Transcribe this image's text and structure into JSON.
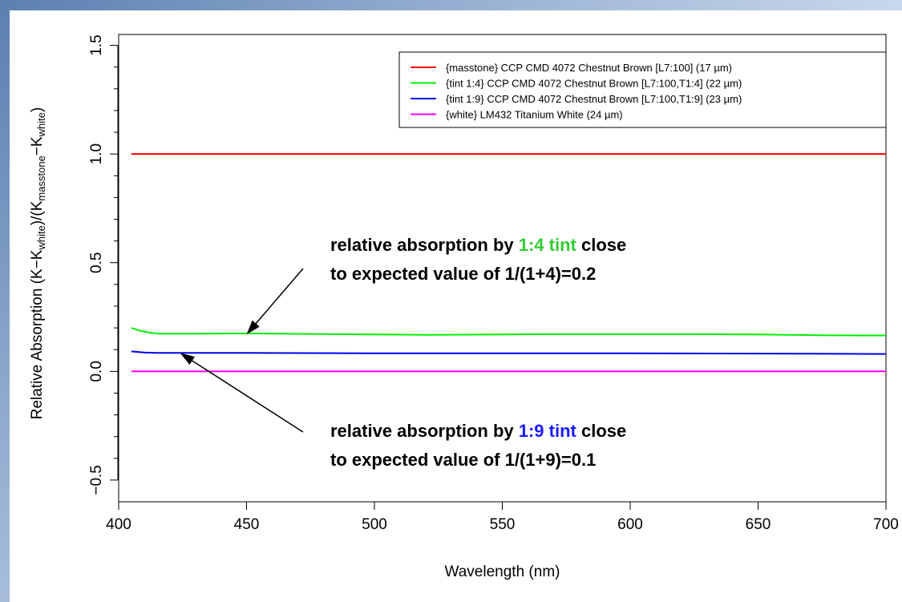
{
  "chart_data": {
    "type": "line",
    "xlabel": "Wavelength (nm)",
    "ylabel": {
      "parts": [
        {
          "t": "Relative Absorption (K−K",
          "sub": false
        },
        {
          "t": "white",
          "sub": true
        },
        {
          "t": ")/(K",
          "sub": false
        },
        {
          "t": "masstone",
          "sub": true
        },
        {
          "t": "−K",
          "sub": false
        },
        {
          "t": "white",
          "sub": true
        },
        {
          "t": ")",
          "sub": false
        }
      ]
    },
    "xlim": [
      400,
      700
    ],
    "ylim": [
      -0.6,
      1.55
    ],
    "x_ticks": [
      400,
      450,
      500,
      550,
      600,
      650,
      700
    ],
    "y_ticks": [
      -0.5,
      0.0,
      0.5,
      1.0,
      1.5
    ],
    "x_tick_labels": [
      "400",
      "450",
      "500",
      "550",
      "600",
      "650",
      "700"
    ],
    "y_tick_labels": [
      "−0.5",
      "0.0",
      "0.5",
      "1.0",
      "1.5"
    ],
    "legend_position": "top-right",
    "grid": false,
    "series": [
      {
        "name": "{masstone} CCP CMD 4072 Chestnut Brown [L7:100] (17 µm)",
        "color": "#ff0000",
        "x": [
          405,
          450,
          500,
          550,
          600,
          650,
          700
        ],
        "y": [
          1.0,
          1.0,
          1.0,
          1.0,
          1.0,
          1.0,
          1.0
        ]
      },
      {
        "name": "{tint 1:4} CCP CMD 4072 Chestnut Brown [L7:100,T1:4] (22 µm)",
        "color": "#00ee00",
        "x": [
          405,
          408,
          412,
          416,
          430,
          450,
          475,
          500,
          520,
          550,
          575,
          600,
          625,
          650,
          675,
          690,
          700
        ],
        "y": [
          0.2,
          0.188,
          0.178,
          0.173,
          0.173,
          0.175,
          0.172,
          0.17,
          0.168,
          0.17,
          0.171,
          0.171,
          0.171,
          0.17,
          0.166,
          0.165,
          0.165
        ]
      },
      {
        "name": "{tint 1:9} CCP CMD 4072 Chestnut Brown [L7:100,T1:9] (23 µm)",
        "color": "#0000ee",
        "x": [
          405,
          410,
          415,
          450,
          500,
          550,
          600,
          650,
          700
        ],
        "y": [
          0.092,
          0.087,
          0.085,
          0.085,
          0.083,
          0.083,
          0.083,
          0.082,
          0.08
        ]
      },
      {
        "name": "{white} LM432 Titanium White (24 µm)",
        "color": "#ff00ff",
        "x": [
          405,
          450,
          500,
          550,
          600,
          650,
          700
        ],
        "y": [
          0.0,
          0.0,
          0.0,
          0.0,
          0.0,
          0.0,
          0.0
        ]
      }
    ],
    "annotations": [
      {
        "id": "ann1",
        "lines": [
          [
            {
              "t": "relative absorption by ",
              "color": "#000000"
            },
            {
              "t": "1:4 tint",
              "color": "#33cc33"
            },
            {
              "t": " close",
              "color": "#000000"
            }
          ],
          [
            {
              "t": "to expected value of 1/(1+4)=0.2",
              "color": "#000000"
            }
          ]
        ],
        "arrow_to": [
          450,
          0.17
        ]
      },
      {
        "id": "ann2",
        "lines": [
          [
            {
              "t": "relative absorption by ",
              "color": "#000000"
            },
            {
              "t": "1:9 tint",
              "color": "#1a1aff"
            },
            {
              "t": " close",
              "color": "#000000"
            }
          ],
          [
            {
              "t": "to expected value of 1/(1+9)=0.1",
              "color": "#000000"
            }
          ]
        ],
        "arrow_to": [
          424,
          0.085
        ]
      }
    ]
  }
}
